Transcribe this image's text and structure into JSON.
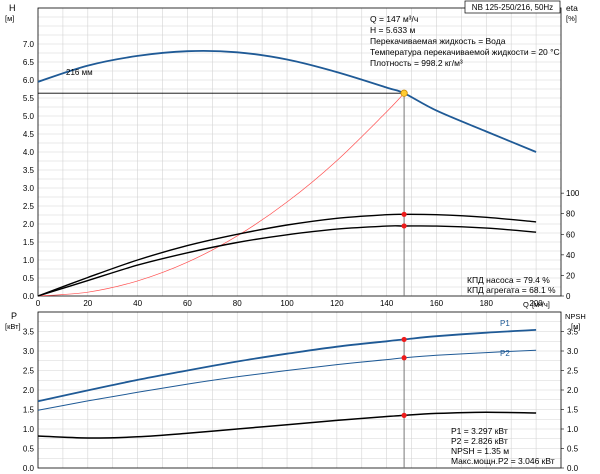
{
  "chart_data": [
    {
      "type": "line",
      "title": "NB 125-250/216, 50Hz",
      "ylabel": "H",
      "yunit": "[м]",
      "xlabel": "Q",
      "xunit": "[м³/ч]",
      "y2label": "eta",
      "y2unit": "[%]",
      "xlim": [
        0,
        210
      ],
      "ylim": [
        0,
        8
      ],
      "y2lim": [
        0,
        280
      ],
      "x_ticks": [
        "20",
        "40",
        "60",
        "80",
        "100",
        "120",
        "140",
        "160",
        "180",
        "200"
      ],
      "y_ticks": [
        "0.0",
        "0.5",
        "1.0",
        "1.5",
        "2.0",
        "2.5",
        "3.0",
        "3.5",
        "4.0",
        "4.5",
        "5.0",
        "5.5",
        "6.0",
        "6.5",
        "7.0"
      ],
      "y2_ticks": [
        "0",
        "20",
        "40",
        "60",
        "80",
        "100"
      ],
      "grid": true,
      "curve_label": "216 мм",
      "series": [
        {
          "key": "head",
          "axis": "y",
          "color": "#1f5a96",
          "x": [
            0,
            20,
            40,
            60,
            80,
            100,
            120,
            140,
            147,
            160,
            180,
            200
          ],
          "y": [
            5.95,
            6.4,
            6.67,
            6.8,
            6.77,
            6.57,
            6.22,
            5.79,
            5.633,
            5.15,
            4.57,
            4.0
          ]
        },
        {
          "key": "system",
          "axis": "y",
          "color": "#ff4f4f",
          "x": [
            0,
            20,
            40,
            60,
            80,
            100,
            120,
            140,
            147
          ],
          "y": [
            0,
            0.105,
            0.42,
            0.94,
            1.67,
            2.61,
            3.76,
            5.12,
            5.633
          ]
        },
        {
          "key": "eta_pump",
          "axis": "y2",
          "color": "#000000",
          "x": [
            0,
            20,
            40,
            60,
            80,
            100,
            120,
            140,
            147,
            160,
            180,
            200
          ],
          "y": [
            0,
            18,
            35,
            49,
            60,
            69,
            75.5,
            79,
            79.4,
            79,
            76.5,
            72
          ]
        },
        {
          "key": "eta_unit",
          "axis": "y2",
          "color": "#000000",
          "x": [
            0,
            20,
            40,
            60,
            80,
            100,
            120,
            140,
            147,
            160,
            180,
            200
          ],
          "y": [
            0,
            15,
            30,
            42,
            52,
            59.5,
            65,
            68,
            68.1,
            68,
            66,
            62
          ]
        }
      ],
      "duty_point": {
        "q": 147,
        "h": 5.633
      },
      "info_lines": [
        "Q = 147 м³/ч",
        "H = 5.633 м",
        "Перекачиваемая жидкость = Вода",
        "Температура перекачиваемой жидкости = 20 °C",
        "Плотность = 998.2 кг/м³"
      ],
      "eta_lines": [
        "КПД насоса = 79.4 %",
        "КПД агрегата = 68.1 %"
      ],
      "eta_points": [
        79.4,
        68.1
      ]
    },
    {
      "type": "line",
      "ylabel": "P",
      "yunit": "[кВт]",
      "y2label": "NPSH",
      "y2unit": "[м]",
      "xlim": [
        0,
        210
      ],
      "ylim": [
        0,
        4
      ],
      "y_ticks": [
        "0.0",
        "0.5",
        "1.0",
        "1.5",
        "2.0",
        "2.5",
        "3.0",
        "3.5"
      ],
      "y2_ticks": [
        "0.0",
        "0.5",
        "1.0",
        "1.5",
        "2.0",
        "2.5",
        "3.0",
        "3.5"
      ],
      "grid": true,
      "series": [
        {
          "key": "p1",
          "name": "P1",
          "axis": "y",
          "color": "#1f5a96",
          "x": [
            0,
            20,
            40,
            60,
            80,
            100,
            120,
            140,
            147,
            160,
            180,
            200
          ],
          "y": [
            1.71,
            1.99,
            2.26,
            2.5,
            2.73,
            2.93,
            3.11,
            3.25,
            3.297,
            3.38,
            3.47,
            3.54
          ]
        },
        {
          "key": "p2",
          "name": "P2",
          "axis": "y",
          "color": "#1f5a96",
          "x": [
            0,
            20,
            40,
            60,
            80,
            100,
            120,
            140,
            147,
            160,
            180,
            200
          ],
          "y": [
            1.48,
            1.72,
            1.94,
            2.15,
            2.34,
            2.5,
            2.65,
            2.78,
            2.826,
            2.89,
            2.96,
            3.02
          ]
        },
        {
          "key": "npsh",
          "axis": "y2",
          "color": "#000000",
          "x": [
            0,
            20,
            40,
            60,
            80,
            100,
            120,
            140,
            147,
            160,
            180,
            200
          ],
          "y": [
            0.82,
            0.77,
            0.8,
            0.89,
            1.0,
            1.11,
            1.22,
            1.32,
            1.35,
            1.4,
            1.43,
            1.41
          ]
        }
      ],
      "duty_points": {
        "p1": 3.297,
        "p2": 2.826,
        "npsh": 1.35
      },
      "info_lines": [
        "P1 = 3.297 кВт",
        "P2 = 2.826 кВт",
        "NPSH = 1.35 м",
        "Макс.мощн.P2 = 3.046 кВт"
      ]
    }
  ]
}
